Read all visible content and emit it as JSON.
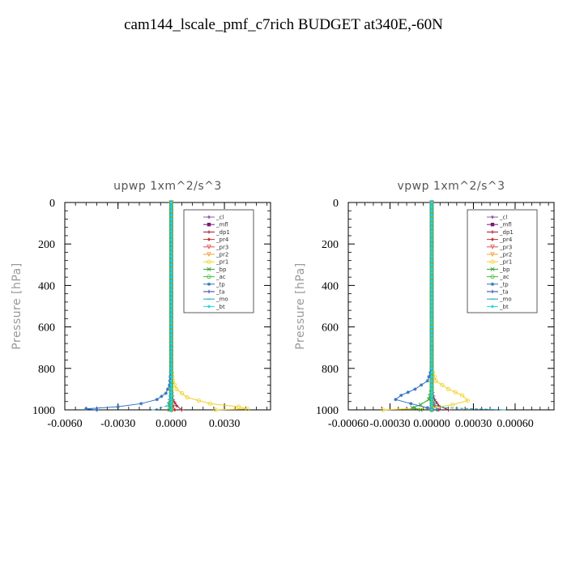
{
  "title": "cam144_lscale_pmf_c7rich  BUDGET at340E,-60N",
  "chart_data": [
    {
      "type": "line",
      "title": "upwp   1xm^2/s^3",
      "ylabel": "Pressure  [hPa]",
      "xlim": [
        -0.006,
        0.0056
      ],
      "ylim": [
        1000,
        0
      ],
      "xticks": [
        "-0.0060",
        "-0.0030",
        "0.0000",
        "0.0030"
      ],
      "xtick_values": [
        -0.006,
        -0.003,
        0.0,
        0.003
      ],
      "yticks": [
        0,
        200,
        400,
        600,
        800,
        1000
      ],
      "legend": "top-right",
      "series": [
        {
          "name": "_cl",
          "color": "#8a5fb0",
          "marker": "diamond",
          "pressure": [
            0,
            400,
            800,
            900,
            950,
            980,
            1000
          ],
          "values": [
            0,
            0,
            0,
            0.0,
            0.0,
            0.0,
            0.0
          ]
        },
        {
          "name": "_mfl",
          "color": "#7a1a7a",
          "marker": "square",
          "pressure": [
            0,
            400,
            800,
            900,
            950,
            980,
            1000
          ],
          "values": [
            0,
            0,
            0,
            0.0,
            0.0,
            0.0,
            0.0
          ]
        },
        {
          "name": "_dp1",
          "color": "#a0102c",
          "marker": "plus",
          "pressure": [
            0,
            400,
            800,
            900,
            950,
            980,
            1000
          ],
          "values": [
            0,
            0,
            0,
            0.0,
            0.0001,
            0.0003,
            0.0006
          ]
        },
        {
          "name": "_pr4",
          "color": "#d03030",
          "marker": "diamond",
          "pressure": [
            0,
            400,
            800,
            900,
            950,
            980,
            1000
          ],
          "values": [
            0,
            0,
            0,
            0.0,
            0.0,
            0.0001,
            0.0002
          ]
        },
        {
          "name": "_pr3",
          "color": "#e05050",
          "marker": "triangle",
          "pressure": [
            0,
            400,
            800,
            900,
            950,
            980,
            1000
          ],
          "values": [
            0,
            0,
            0,
            0.0,
            0.0,
            0.0,
            0.0
          ]
        },
        {
          "name": "_pr2",
          "color": "#f0a040",
          "marker": "triangle",
          "pressure": [
            0,
            400,
            800,
            900,
            950,
            980,
            1000
          ],
          "values": [
            0,
            0,
            0,
            0.0,
            0.0,
            0.0,
            0.0
          ]
        },
        {
          "name": "_pr1",
          "color": "#f2d020",
          "marker": "circle",
          "pressure": [
            0,
            400,
            800,
            860,
            900,
            940,
            970,
            985,
            995,
            1000
          ],
          "values": [
            0,
            0,
            0,
            0.0001,
            0.0003,
            0.0009,
            0.0022,
            0.0038,
            0.0043,
            0.0025
          ]
        },
        {
          "name": "_bp",
          "color": "#30a030",
          "marker": "x",
          "pressure": [
            0,
            400,
            800,
            900,
            950,
            980,
            1000
          ],
          "values": [
            0,
            0,
            0,
            0.0,
            0.0,
            -0.0001,
            -0.0001
          ]
        },
        {
          "name": "_ac",
          "color": "#40c040",
          "marker": "circle",
          "pressure": [
            0,
            400,
            800,
            900,
            950,
            980,
            1000
          ],
          "values": [
            0,
            0,
            0,
            0.0,
            0.0,
            0.0,
            0.0
          ]
        },
        {
          "name": "_tp",
          "color": "#3070c0",
          "marker": "star",
          "pressure": [
            0,
            400,
            800,
            880,
            920,
            950,
            970,
            985,
            995,
            1000
          ],
          "values": [
            0,
            0,
            0,
            -0.0001,
            -0.0003,
            -0.0008,
            -0.0017,
            -0.003,
            -0.0048,
            -0.0042
          ]
        },
        {
          "name": "_ta",
          "color": "#2040a0",
          "marker": "plus",
          "pressure": [
            0,
            400,
            800,
            900,
            950,
            980,
            1000
          ],
          "values": [
            0,
            0,
            0,
            0.0,
            0.0,
            0.0,
            0.0
          ]
        },
        {
          "name": "_mo",
          "color": "#20a0c0",
          "marker": "dash",
          "pressure": [
            0,
            400,
            800,
            900,
            950,
            980,
            1000
          ],
          "values": [
            0,
            0,
            0,
            0.0,
            -0.0001,
            -0.0002,
            -0.001
          ]
        },
        {
          "name": "_bt",
          "color": "#20d8e0",
          "marker": "diamond",
          "pressure": [
            0,
            400,
            800,
            900,
            950,
            980,
            1000
          ],
          "values": [
            0,
            0,
            0,
            0.0,
            0.0,
            0.0,
            0.0
          ]
        }
      ]
    },
    {
      "type": "line",
      "title": "vpwp   1xm^2/s^3",
      "ylabel": "Pressure  [hPa]",
      "xlim": [
        -0.0006,
        0.00088
      ],
      "ylim": [
        1000,
        0
      ],
      "xticks": [
        "-0.00060",
        "-0.00030",
        "0.00000",
        "0.00030",
        "0.00060"
      ],
      "xtick_values": [
        -0.0006,
        -0.0003,
        0.0,
        0.0003,
        0.0006
      ],
      "yticks": [
        0,
        200,
        400,
        600,
        800,
        1000
      ],
      "legend": "top-right",
      "series": [
        {
          "name": "_cl",
          "color": "#8a5fb0",
          "marker": "diamond",
          "pressure": [
            0,
            400,
            800,
            900,
            950,
            980,
            1000
          ],
          "values": [
            0,
            0,
            0,
            0.0,
            0.0,
            0.0,
            0.0
          ]
        },
        {
          "name": "_mfl",
          "color": "#7a1a7a",
          "marker": "square",
          "pressure": [
            0,
            400,
            800,
            900,
            950,
            980,
            1000
          ],
          "values": [
            0,
            0,
            0,
            0.0,
            0.0,
            0.0,
            0.0
          ]
        },
        {
          "name": "_dp1",
          "color": "#a0102c",
          "marker": "plus",
          "pressure": [
            0,
            400,
            800,
            900,
            950,
            980,
            1000
          ],
          "values": [
            0,
            0,
            0,
            0.0,
            2e-05,
            5e-05,
            0.00012
          ]
        },
        {
          "name": "_pr4",
          "color": "#d03030",
          "marker": "diamond",
          "pressure": [
            0,
            400,
            800,
            900,
            950,
            980,
            1000
          ],
          "values": [
            0,
            0,
            0,
            0.0,
            0.0,
            2e-05,
            5e-05
          ]
        },
        {
          "name": "_pr3",
          "color": "#e05050",
          "marker": "triangle",
          "pressure": [
            0,
            400,
            800,
            900,
            950,
            980,
            1000
          ],
          "values": [
            0,
            0,
            0,
            0.0,
            0.0,
            0.0,
            0.0
          ]
        },
        {
          "name": "_pr2",
          "color": "#f0a040",
          "marker": "triangle",
          "pressure": [
            0,
            400,
            800,
            900,
            950,
            980,
            1000
          ],
          "values": [
            0,
            0,
            0,
            0.0,
            0.0,
            0.0,
            0.0
          ]
        },
        {
          "name": "_pr1",
          "color": "#f2d020",
          "marker": "circle",
          "pressure": [
            0,
            400,
            800,
            860,
            900,
            930,
            955,
            975,
            990,
            1000
          ],
          "values": [
            0,
            0,
            0,
            3e-05,
            0.00012,
            0.00022,
            0.00026,
            0.00015,
            2e-05,
            -0.00035
          ]
        },
        {
          "name": "_bp",
          "color": "#30a030",
          "marker": "x",
          "pressure": [
            0,
            400,
            800,
            900,
            950,
            975,
            990,
            1000
          ],
          "values": [
            0,
            0,
            0,
            0.0,
            -2e-05,
            -8e-05,
            -0.00014,
            -8e-05
          ]
        },
        {
          "name": "_ac",
          "color": "#40c040",
          "marker": "circle",
          "pressure": [
            0,
            400,
            800,
            900,
            950,
            980,
            1000
          ],
          "values": [
            0,
            0,
            0,
            0.0,
            0.0,
            0.0,
            0.0
          ]
        },
        {
          "name": "_tp",
          "color": "#3070c0",
          "marker": "star",
          "pressure": [
            0,
            400,
            800,
            860,
            900,
            930,
            950,
            970,
            990,
            1000
          ],
          "values": [
            0,
            0,
            0,
            -3e-05,
            -0.00012,
            -0.00022,
            -0.00026,
            -0.00015,
            -3e-05,
            4e-05
          ]
        },
        {
          "name": "_ta",
          "color": "#2040a0",
          "marker": "plus",
          "pressure": [
            0,
            400,
            800,
            900,
            950,
            980,
            1000
          ],
          "values": [
            0,
            0,
            0,
            0.0,
            0.0,
            0.0,
            0.0
          ]
        },
        {
          "name": "_mo",
          "color": "#20a0c0",
          "marker": "dash",
          "pressure": [
            0,
            400,
            800,
            900,
            950,
            980,
            990,
            1000
          ],
          "values": [
            0,
            0,
            0,
            0.0,
            1e-05,
            3e-05,
            0.0001,
            0.00052
          ]
        },
        {
          "name": "_bt",
          "color": "#20d8e0",
          "marker": "diamond",
          "pressure": [
            0,
            400,
            800,
            900,
            950,
            980,
            1000
          ],
          "values": [
            0,
            0,
            0,
            0.0,
            0.0,
            0.0,
            0.0
          ]
        }
      ]
    }
  ]
}
